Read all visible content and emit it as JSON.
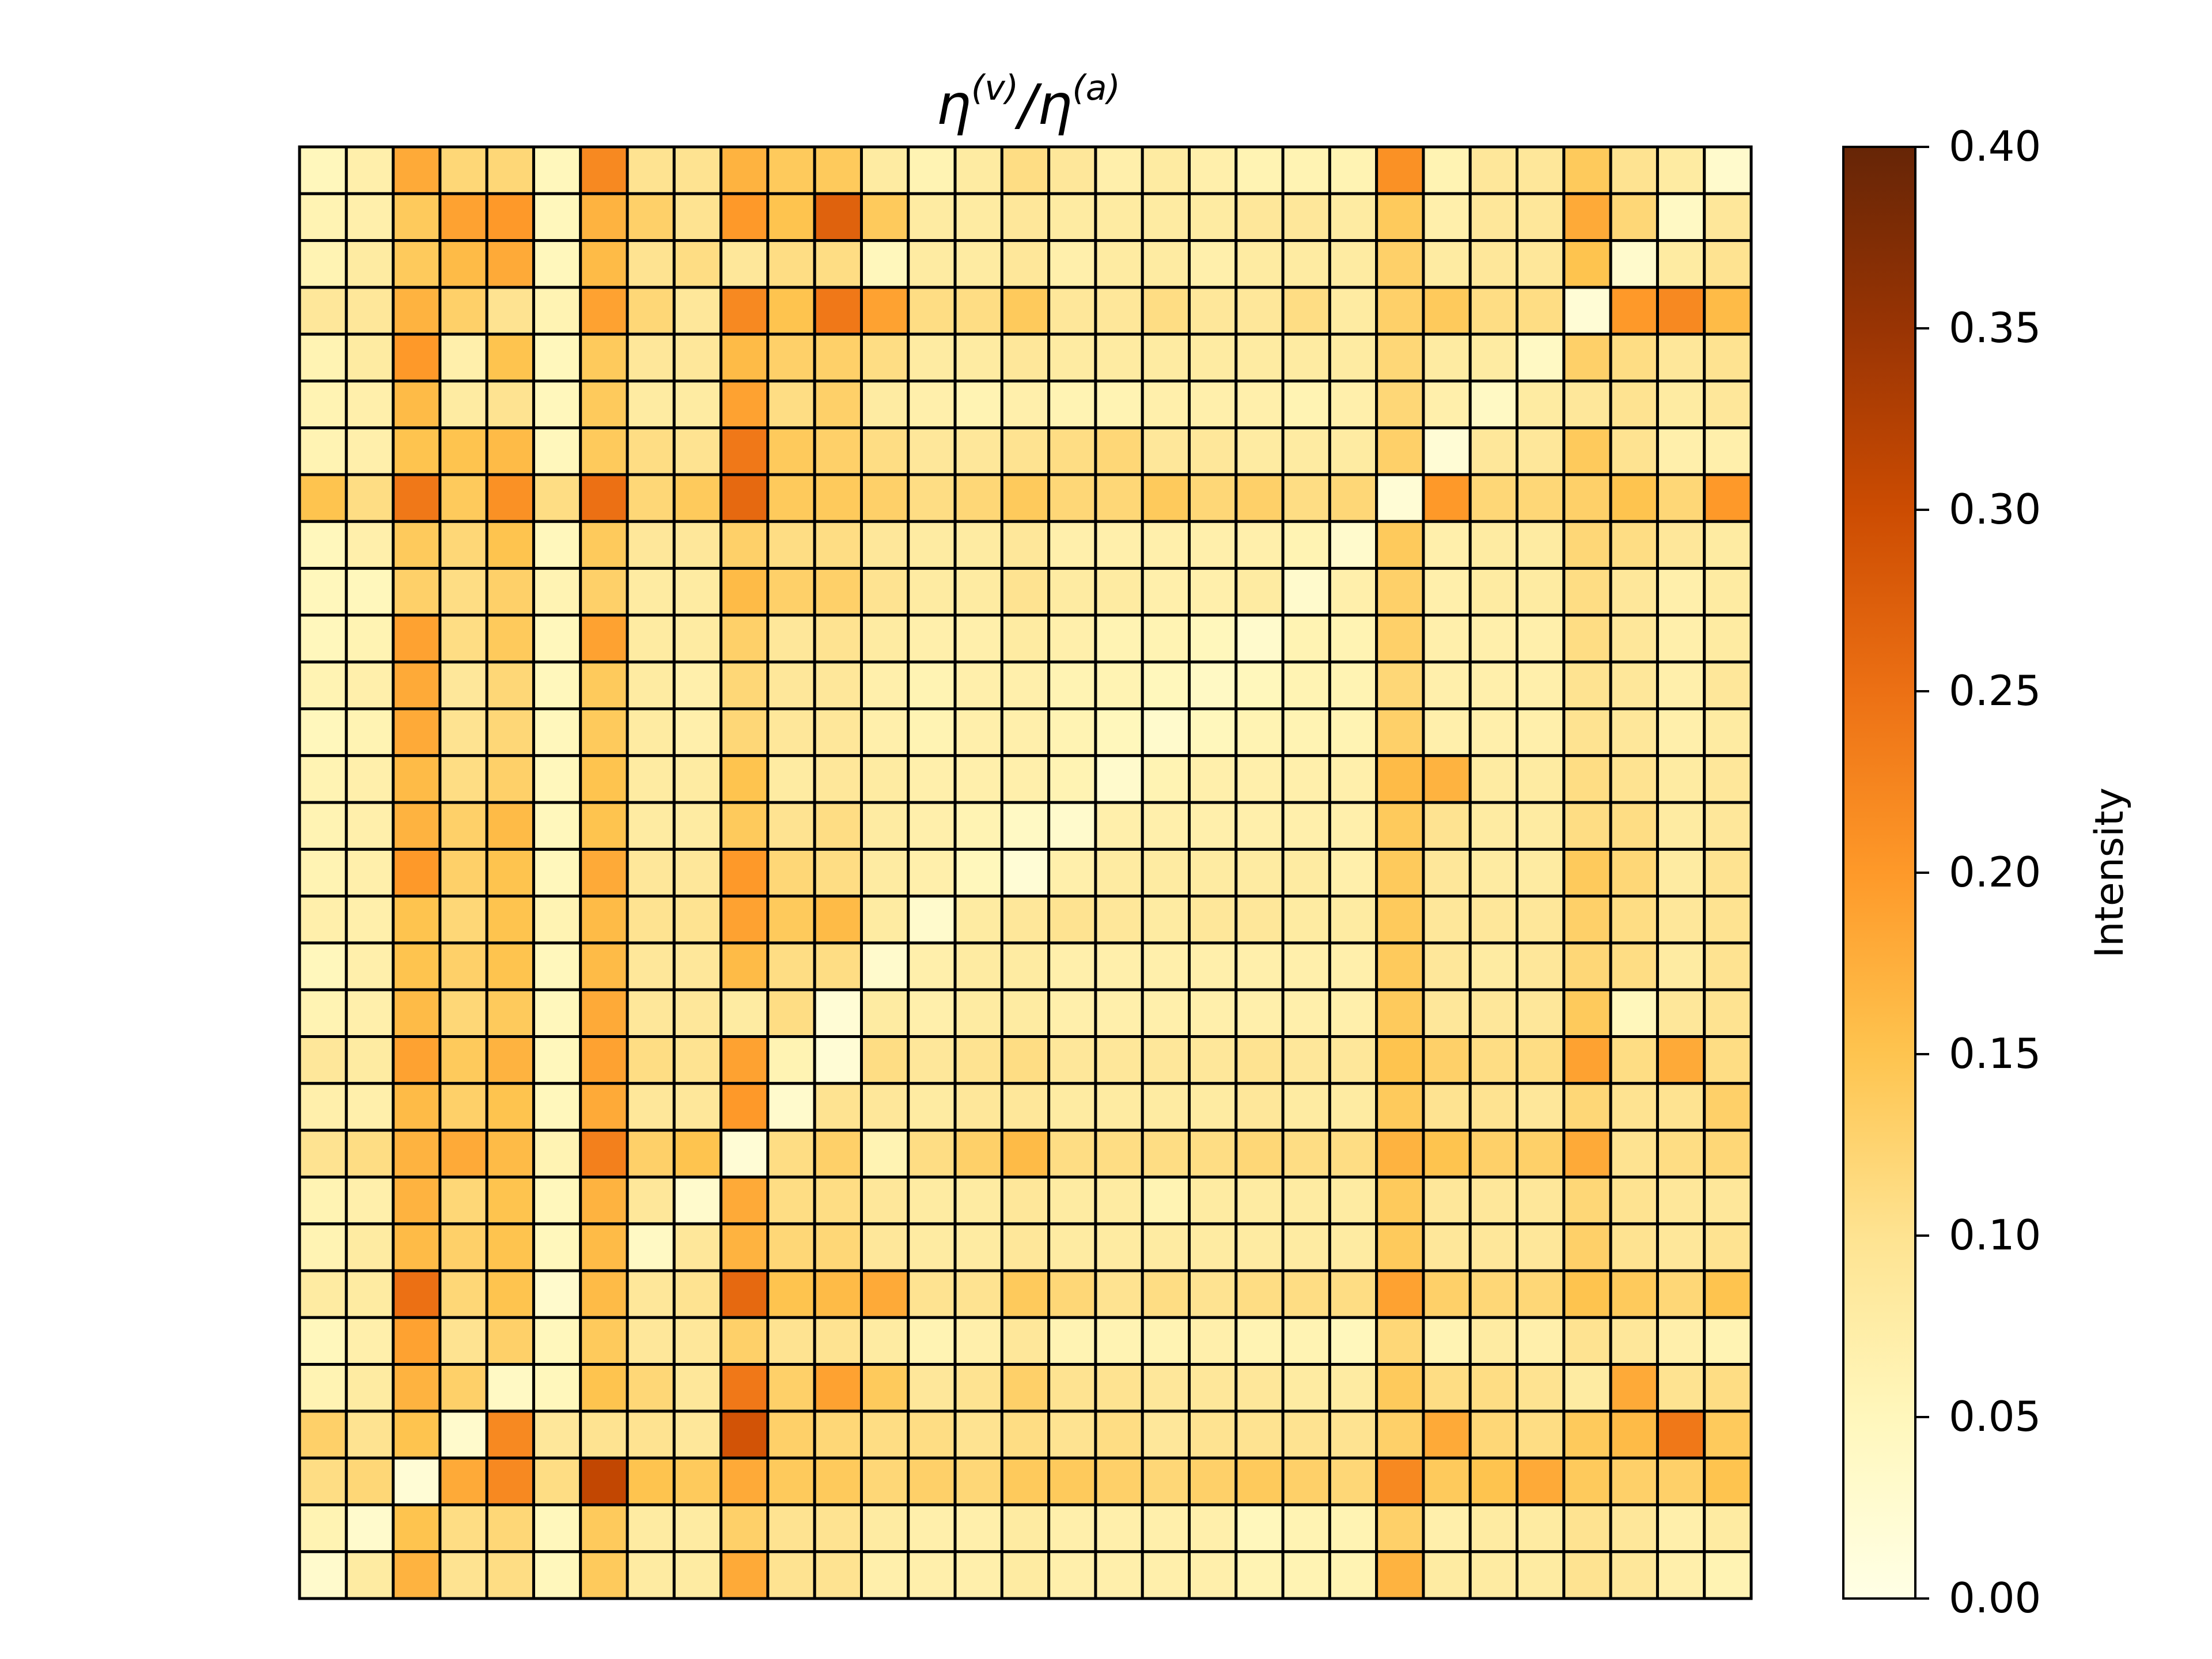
{
  "chart_data": {
    "type": "heatmap",
    "title": {
      "base1": "η",
      "sup1": "(v)",
      "sep": "/",
      "base2": "η",
      "sup2": "(a)"
    },
    "rows": 31,
    "cols": 31,
    "xticks": "none",
    "yticks": "none",
    "colorbar": {
      "label": "Intensity",
      "range": [
        0.0,
        0.4
      ],
      "ticks": [
        "0.00",
        "0.05",
        "0.10",
        "0.15",
        "0.20",
        "0.25",
        "0.30",
        "0.35",
        "0.40"
      ],
      "colormap": [
        "#ffffe5",
        "#fff7bc",
        "#fee391",
        "#fec44f",
        "#fe9929",
        "#ec7014",
        "#cc4c02",
        "#993404",
        "#662506"
      ]
    },
    "values": [
      [
        0.05,
        0.07,
        0.18,
        0.12,
        0.12,
        0.05,
        0.22,
        0.1,
        0.1,
        0.17,
        0.14,
        0.14,
        0.08,
        0.06,
        0.08,
        0.11,
        0.09,
        0.07,
        0.08,
        0.07,
        0.06,
        0.06,
        0.06,
        0.21,
        0.06,
        0.09,
        0.09,
        0.14,
        0.1,
        0.08,
        0.03
      ],
      [
        0.06,
        0.07,
        0.14,
        0.19,
        0.2,
        0.05,
        0.17,
        0.13,
        0.1,
        0.2,
        0.15,
        0.27,
        0.14,
        0.08,
        0.08,
        0.09,
        0.08,
        0.08,
        0.08,
        0.08,
        0.09,
        0.09,
        0.08,
        0.14,
        0.07,
        0.09,
        0.09,
        0.18,
        0.12,
        0.04,
        0.09
      ],
      [
        0.06,
        0.08,
        0.14,
        0.16,
        0.18,
        0.05,
        0.16,
        0.1,
        0.11,
        0.09,
        0.11,
        0.11,
        0.05,
        0.08,
        0.08,
        0.09,
        0.07,
        0.08,
        0.08,
        0.07,
        0.08,
        0.08,
        0.08,
        0.13,
        0.08,
        0.09,
        0.09,
        0.15,
        0.03,
        0.08,
        0.1
      ],
      [
        0.09,
        0.09,
        0.17,
        0.13,
        0.1,
        0.06,
        0.19,
        0.12,
        0.09,
        0.22,
        0.15,
        0.24,
        0.19,
        0.11,
        0.11,
        0.14,
        0.09,
        0.09,
        0.11,
        0.09,
        0.09,
        0.11,
        0.08,
        0.13,
        0.14,
        0.11,
        0.11,
        0.02,
        0.2,
        0.22,
        0.16
      ],
      [
        0.06,
        0.08,
        0.2,
        0.07,
        0.15,
        0.05,
        0.14,
        0.09,
        0.09,
        0.16,
        0.13,
        0.13,
        0.11,
        0.08,
        0.08,
        0.09,
        0.08,
        0.08,
        0.08,
        0.08,
        0.08,
        0.08,
        0.08,
        0.12,
        0.08,
        0.08,
        0.04,
        0.13,
        0.11,
        0.09,
        0.1
      ],
      [
        0.06,
        0.07,
        0.16,
        0.08,
        0.1,
        0.05,
        0.14,
        0.08,
        0.08,
        0.19,
        0.11,
        0.13,
        0.08,
        0.07,
        0.06,
        0.07,
        0.06,
        0.06,
        0.07,
        0.07,
        0.07,
        0.06,
        0.07,
        0.12,
        0.07,
        0.04,
        0.08,
        0.09,
        0.1,
        0.08,
        0.09
      ],
      [
        0.06,
        0.07,
        0.15,
        0.15,
        0.16,
        0.05,
        0.14,
        0.11,
        0.1,
        0.24,
        0.14,
        0.13,
        0.11,
        0.09,
        0.09,
        0.1,
        0.11,
        0.12,
        0.09,
        0.09,
        0.08,
        0.08,
        0.08,
        0.13,
        0.02,
        0.09,
        0.09,
        0.14,
        0.1,
        0.07,
        0.07
      ],
      [
        0.15,
        0.11,
        0.24,
        0.14,
        0.21,
        0.11,
        0.25,
        0.12,
        0.14,
        0.26,
        0.14,
        0.14,
        0.13,
        0.11,
        0.12,
        0.14,
        0.12,
        0.12,
        0.14,
        0.12,
        0.13,
        0.11,
        0.12,
        0.02,
        0.2,
        0.12,
        0.12,
        0.13,
        0.15,
        0.12,
        0.2
      ],
      [
        0.05,
        0.07,
        0.14,
        0.12,
        0.15,
        0.05,
        0.14,
        0.09,
        0.09,
        0.13,
        0.11,
        0.11,
        0.09,
        0.08,
        0.08,
        0.09,
        0.07,
        0.07,
        0.07,
        0.07,
        0.07,
        0.06,
        0.03,
        0.14,
        0.07,
        0.08,
        0.08,
        0.12,
        0.11,
        0.09,
        0.08
      ],
      [
        0.05,
        0.05,
        0.13,
        0.11,
        0.13,
        0.06,
        0.13,
        0.08,
        0.08,
        0.16,
        0.13,
        0.13,
        0.1,
        0.08,
        0.08,
        0.1,
        0.08,
        0.08,
        0.07,
        0.07,
        0.08,
        0.03,
        0.07,
        0.13,
        0.07,
        0.08,
        0.08,
        0.11,
        0.09,
        0.07,
        0.08
      ],
      [
        0.05,
        0.06,
        0.19,
        0.11,
        0.14,
        0.05,
        0.19,
        0.08,
        0.08,
        0.13,
        0.09,
        0.1,
        0.08,
        0.07,
        0.07,
        0.08,
        0.07,
        0.06,
        0.06,
        0.05,
        0.03,
        0.06,
        0.06,
        0.13,
        0.07,
        0.07,
        0.07,
        0.11,
        0.09,
        0.07,
        0.08
      ],
      [
        0.06,
        0.07,
        0.18,
        0.09,
        0.12,
        0.05,
        0.14,
        0.08,
        0.07,
        0.12,
        0.09,
        0.09,
        0.07,
        0.06,
        0.07,
        0.07,
        0.06,
        0.06,
        0.05,
        0.04,
        0.05,
        0.06,
        0.06,
        0.12,
        0.07,
        0.07,
        0.07,
        0.1,
        0.09,
        0.07,
        0.09
      ],
      [
        0.05,
        0.06,
        0.18,
        0.1,
        0.12,
        0.05,
        0.14,
        0.08,
        0.07,
        0.12,
        0.09,
        0.09,
        0.07,
        0.06,
        0.07,
        0.07,
        0.06,
        0.05,
        0.03,
        0.05,
        0.06,
        0.06,
        0.06,
        0.13,
        0.07,
        0.07,
        0.07,
        0.1,
        0.09,
        0.07,
        0.08
      ],
      [
        0.06,
        0.07,
        0.16,
        0.11,
        0.13,
        0.05,
        0.15,
        0.08,
        0.08,
        0.15,
        0.08,
        0.09,
        0.08,
        0.07,
        0.07,
        0.07,
        0.06,
        0.03,
        0.06,
        0.07,
        0.07,
        0.07,
        0.07,
        0.16,
        0.17,
        0.08,
        0.08,
        0.11,
        0.1,
        0.08,
        0.09
      ],
      [
        0.06,
        0.07,
        0.17,
        0.13,
        0.16,
        0.05,
        0.15,
        0.08,
        0.08,
        0.14,
        0.1,
        0.11,
        0.08,
        0.07,
        0.06,
        0.04,
        0.03,
        0.07,
        0.07,
        0.07,
        0.07,
        0.07,
        0.07,
        0.14,
        0.1,
        0.08,
        0.08,
        0.11,
        0.11,
        0.08,
        0.09
      ],
      [
        0.06,
        0.07,
        0.2,
        0.13,
        0.15,
        0.05,
        0.18,
        0.09,
        0.09,
        0.2,
        0.12,
        0.11,
        0.08,
        0.07,
        0.05,
        0.02,
        0.07,
        0.08,
        0.08,
        0.08,
        0.08,
        0.08,
        0.07,
        0.14,
        0.09,
        0.08,
        0.08,
        0.14,
        0.12,
        0.08,
        0.1
      ],
      [
        0.07,
        0.07,
        0.15,
        0.12,
        0.15,
        0.06,
        0.16,
        0.1,
        0.1,
        0.19,
        0.14,
        0.16,
        0.08,
        0.03,
        0.08,
        0.09,
        0.1,
        0.09,
        0.08,
        0.09,
        0.09,
        0.08,
        0.08,
        0.14,
        0.09,
        0.09,
        0.09,
        0.13,
        0.11,
        0.09,
        0.1
      ],
      [
        0.05,
        0.07,
        0.15,
        0.13,
        0.15,
        0.05,
        0.16,
        0.09,
        0.09,
        0.16,
        0.11,
        0.11,
        0.03,
        0.07,
        0.08,
        0.08,
        0.07,
        0.07,
        0.07,
        0.07,
        0.07,
        0.07,
        0.07,
        0.14,
        0.09,
        0.08,
        0.09,
        0.12,
        0.11,
        0.08,
        0.1
      ],
      [
        0.06,
        0.07,
        0.16,
        0.12,
        0.14,
        0.05,
        0.18,
        0.09,
        0.09,
        0.08,
        0.11,
        0.02,
        0.08,
        0.07,
        0.08,
        0.08,
        0.07,
        0.07,
        0.07,
        0.07,
        0.07,
        0.07,
        0.07,
        0.14,
        0.09,
        0.09,
        0.09,
        0.14,
        0.05,
        0.09,
        0.1
      ],
      [
        0.09,
        0.08,
        0.19,
        0.14,
        0.17,
        0.05,
        0.19,
        0.11,
        0.1,
        0.19,
        0.06,
        0.02,
        0.11,
        0.09,
        0.1,
        0.11,
        0.09,
        0.09,
        0.09,
        0.09,
        0.1,
        0.09,
        0.09,
        0.15,
        0.13,
        0.11,
        0.11,
        0.19,
        0.11,
        0.18,
        0.11
      ],
      [
        0.07,
        0.07,
        0.16,
        0.13,
        0.15,
        0.05,
        0.18,
        0.09,
        0.09,
        0.2,
        0.03,
        0.1,
        0.09,
        0.08,
        0.09,
        0.09,
        0.08,
        0.08,
        0.08,
        0.08,
        0.09,
        0.08,
        0.08,
        0.14,
        0.1,
        0.1,
        0.09,
        0.12,
        0.1,
        0.1,
        0.13
      ],
      [
        0.1,
        0.11,
        0.17,
        0.18,
        0.16,
        0.06,
        0.23,
        0.13,
        0.15,
        0.02,
        0.11,
        0.13,
        0.06,
        0.11,
        0.13,
        0.16,
        0.11,
        0.11,
        0.11,
        0.11,
        0.12,
        0.11,
        0.11,
        0.17,
        0.15,
        0.13,
        0.13,
        0.18,
        0.1,
        0.11,
        0.12
      ],
      [
        0.06,
        0.07,
        0.17,
        0.12,
        0.15,
        0.05,
        0.17,
        0.09,
        0.03,
        0.18,
        0.11,
        0.11,
        0.09,
        0.08,
        0.08,
        0.09,
        0.08,
        0.08,
        0.06,
        0.08,
        0.08,
        0.08,
        0.08,
        0.14,
        0.09,
        0.09,
        0.09,
        0.12,
        0.1,
        0.09,
        0.09
      ],
      [
        0.06,
        0.08,
        0.16,
        0.13,
        0.15,
        0.05,
        0.16,
        0.04,
        0.09,
        0.17,
        0.12,
        0.12,
        0.09,
        0.08,
        0.08,
        0.09,
        0.08,
        0.08,
        0.08,
        0.08,
        0.08,
        0.08,
        0.08,
        0.14,
        0.09,
        0.09,
        0.09,
        0.13,
        0.1,
        0.09,
        0.1
      ],
      [
        0.08,
        0.08,
        0.25,
        0.12,
        0.15,
        0.03,
        0.16,
        0.09,
        0.1,
        0.26,
        0.15,
        0.16,
        0.18,
        0.1,
        0.1,
        0.14,
        0.12,
        0.1,
        0.11,
        0.1,
        0.11,
        0.11,
        0.11,
        0.19,
        0.13,
        0.12,
        0.12,
        0.15,
        0.14,
        0.12,
        0.15
      ],
      [
        0.05,
        0.07,
        0.19,
        0.1,
        0.13,
        0.05,
        0.14,
        0.09,
        0.09,
        0.13,
        0.1,
        0.1,
        0.08,
        0.06,
        0.07,
        0.09,
        0.06,
        0.06,
        0.06,
        0.07,
        0.06,
        0.06,
        0.05,
        0.12,
        0.06,
        0.08,
        0.07,
        0.1,
        0.09,
        0.07,
        0.06
      ],
      [
        0.06,
        0.08,
        0.17,
        0.13,
        0.04,
        0.05,
        0.15,
        0.12,
        0.09,
        0.24,
        0.13,
        0.19,
        0.14,
        0.09,
        0.1,
        0.13,
        0.1,
        0.1,
        0.09,
        0.09,
        0.09,
        0.08,
        0.08,
        0.14,
        0.11,
        0.11,
        0.1,
        0.08,
        0.18,
        0.1,
        0.11
      ],
      [
        0.13,
        0.1,
        0.15,
        0.03,
        0.22,
        0.09,
        0.1,
        0.1,
        0.09,
        0.29,
        0.13,
        0.12,
        0.11,
        0.11,
        0.1,
        0.11,
        0.1,
        0.11,
        0.09,
        0.1,
        0.1,
        0.1,
        0.1,
        0.13,
        0.18,
        0.12,
        0.11,
        0.14,
        0.16,
        0.24,
        0.14
      ],
      [
        0.11,
        0.12,
        0.02,
        0.18,
        0.22,
        0.11,
        0.31,
        0.15,
        0.14,
        0.18,
        0.14,
        0.14,
        0.12,
        0.13,
        0.12,
        0.14,
        0.14,
        0.13,
        0.12,
        0.13,
        0.14,
        0.13,
        0.12,
        0.22,
        0.14,
        0.15,
        0.18,
        0.14,
        0.13,
        0.13,
        0.15
      ],
      [
        0.06,
        0.03,
        0.15,
        0.11,
        0.12,
        0.05,
        0.14,
        0.08,
        0.08,
        0.13,
        0.1,
        0.1,
        0.08,
        0.07,
        0.07,
        0.08,
        0.07,
        0.07,
        0.07,
        0.07,
        0.05,
        0.06,
        0.06,
        0.13,
        0.07,
        0.08,
        0.08,
        0.1,
        0.09,
        0.07,
        0.08
      ],
      [
        0.03,
        0.08,
        0.17,
        0.1,
        0.11,
        0.05,
        0.14,
        0.08,
        0.08,
        0.18,
        0.1,
        0.1,
        0.07,
        0.07,
        0.07,
        0.08,
        0.07,
        0.07,
        0.07,
        0.07,
        0.06,
        0.06,
        0.06,
        0.17,
        0.08,
        0.08,
        0.08,
        0.1,
        0.09,
        0.07,
        0.06
      ]
    ]
  }
}
